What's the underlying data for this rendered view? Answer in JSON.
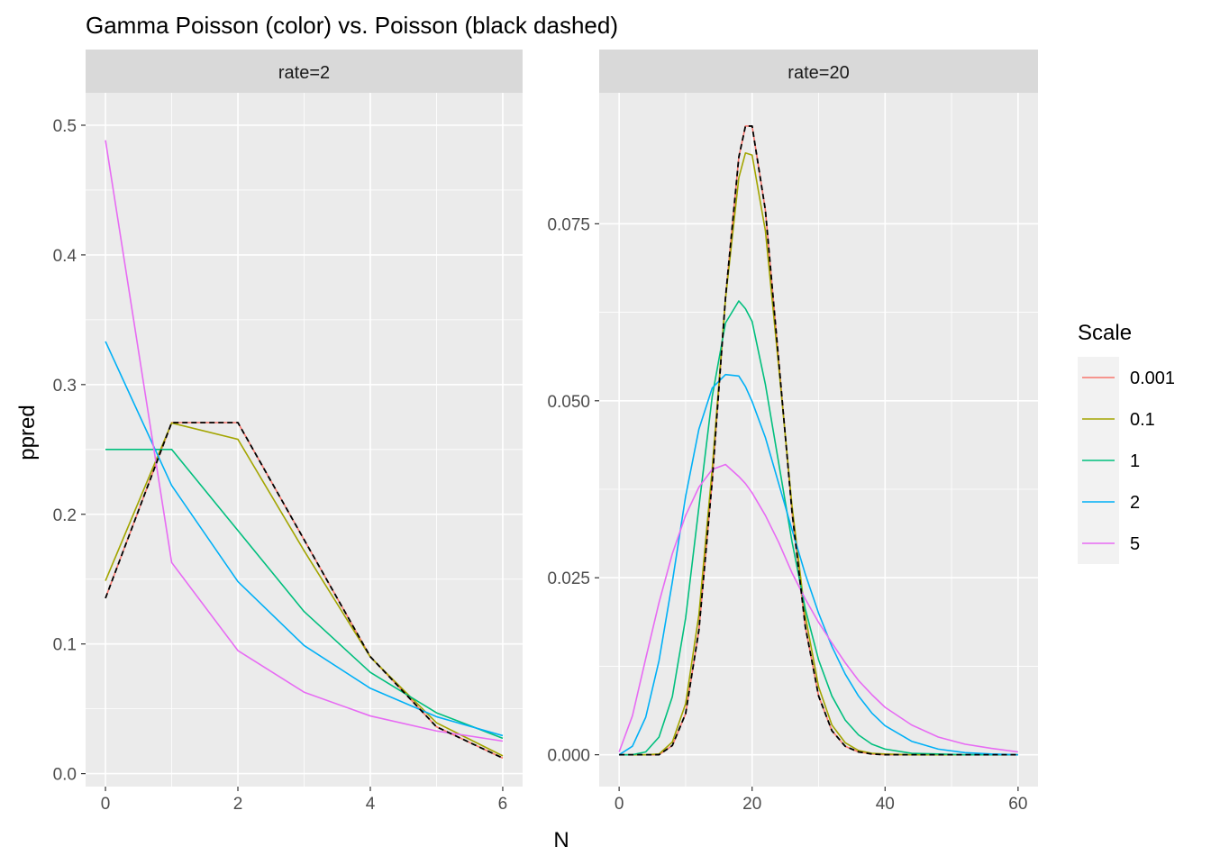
{
  "chart_data": {
    "type": "line",
    "title": "Gamma Poisson (color) vs. Poisson (black dashed)",
    "xlabel": "N",
    "ylabel": "ppred",
    "legend": {
      "title": "Scale",
      "position": "right",
      "entries": [
        {
          "label": "0.001",
          "color": "#F8766D"
        },
        {
          "label": "0.1",
          "color": "#A3A500"
        },
        {
          "label": "1",
          "color": "#00BF7D"
        },
        {
          "label": "2",
          "color": "#00B0F6"
        },
        {
          "label": "5",
          "color": "#E76BF3"
        }
      ]
    },
    "grid": true,
    "panels": [
      {
        "strip": "rate=2",
        "xlim": [
          -0.3,
          6.3
        ],
        "ylim": [
          -0.01,
          0.525
        ],
        "x_ticks": [
          0,
          2,
          4,
          6
        ],
        "x_tick_labels": [
          "0",
          "2",
          "4",
          "6"
        ],
        "y_ticks": [
          0.0,
          0.1,
          0.2,
          0.3,
          0.4,
          0.5
        ],
        "y_tick_labels": [
          "0.0",
          "0.1",
          "0.2",
          "0.3",
          "0.4",
          "0.5"
        ],
        "x": [
          0,
          1,
          2,
          3,
          4,
          5,
          6
        ],
        "series": [
          {
            "name": "0.001",
            "values": [
              0.1354,
              0.2707,
              0.2707,
              0.1804,
              0.0902,
              0.0361,
              0.012
            ]
          },
          {
            "name": "0.1",
            "values": [
              0.1487,
              0.2704,
              0.2578,
              0.1719,
              0.0899,
              0.0392,
              0.0137
            ]
          },
          {
            "name": "1",
            "values": [
              0.25,
              0.25,
              0.1875,
              0.125,
              0.0781,
              0.0469,
              0.0273
            ]
          },
          {
            "name": "2",
            "values": [
              0.3333,
              0.2222,
              0.1481,
              0.0988,
              0.0658,
              0.0439,
              0.0293
            ]
          },
          {
            "name": "5",
            "values": [
              0.4884,
              0.1628,
              0.0949,
              0.0628,
              0.0445,
              0.0329,
              0.0251
            ]
          }
        ],
        "poisson": [
          0.1353,
          0.2707,
          0.2707,
          0.1804,
          0.0902,
          0.0361,
          0.012
        ]
      },
      {
        "strip": "rate=20",
        "xlim": [
          -3,
          63
        ],
        "ylim": [
          -0.0045,
          0.0935
        ],
        "x_ticks": [
          0,
          20,
          40,
          60
        ],
        "x_tick_labels": [
          "0",
          "20",
          "40",
          "60"
        ],
        "y_ticks": [
          0.0,
          0.025,
          0.05,
          0.075
        ],
        "y_tick_labels": [
          "0.000",
          "0.025",
          "0.050",
          "0.075"
        ],
        "x": [
          0,
          2,
          4,
          6,
          8,
          10,
          12,
          14,
          16,
          18,
          19,
          20,
          22,
          24,
          26,
          28,
          30,
          32,
          34,
          36,
          38,
          40,
          44,
          48,
          52,
          56,
          60
        ],
        "series": [
          {
            "name": "0.001",
            "values": [
              0.0,
              0.0,
              0.0,
              0.0,
              0.0013,
              0.0058,
              0.0176,
              0.0387,
              0.0646,
              0.0844,
              0.0888,
              0.0888,
              0.0769,
              0.0557,
              0.0343,
              0.0181,
              0.0083,
              0.0034,
              0.0012,
              0.0004,
              0.0001,
              0.0,
              0.0,
              0.0,
              0.0,
              0.0,
              0.0
            ]
          },
          {
            "name": "0.1",
            "values": [
              0.0,
              0.0,
              0.0,
              0.0001,
              0.0018,
              0.0072,
              0.0198,
              0.0404,
              0.0644,
              0.0815,
              0.085,
              0.0847,
              0.074,
              0.0548,
              0.0352,
              0.0196,
              0.0096,
              0.0042,
              0.0017,
              0.0006,
              0.0002,
              0.0001,
              0.0,
              0.0,
              0.0,
              0.0,
              0.0
            ]
          },
          {
            "name": "1",
            "values": [
              0.0,
              0.0,
              0.0004,
              0.0025,
              0.0082,
              0.0193,
              0.035,
              0.0506,
              0.061,
              0.0641,
              0.063,
              0.0612,
              0.0523,
              0.0412,
              0.0301,
              0.0206,
              0.0134,
              0.0083,
              0.0049,
              0.0028,
              0.0015,
              0.0008,
              0.0002,
              0.0001,
              0.0,
              0.0,
              0.0
            ]
          },
          {
            "name": "2",
            "values": [
              0.0,
              0.0012,
              0.0053,
              0.0133,
              0.0244,
              0.0365,
              0.046,
              0.0518,
              0.0537,
              0.0535,
              0.052,
              0.0499,
              0.0448,
              0.0383,
              0.0318,
              0.0255,
              0.02,
              0.0153,
              0.0114,
              0.0083,
              0.0059,
              0.0041,
              0.0019,
              0.0008,
              0.0003,
              0.0001,
              0.0
            ]
          },
          {
            "name": "5",
            "values": [
              0.0004,
              0.0055,
              0.0136,
              0.0215,
              0.0284,
              0.0338,
              0.0378,
              0.0403,
              0.041,
              0.0393,
              0.0383,
              0.037,
              0.0338,
              0.03,
              0.0257,
              0.022,
              0.0187,
              0.0158,
              0.013,
              0.0105,
              0.0085,
              0.0067,
              0.0042,
              0.0025,
              0.0015,
              0.0009,
              0.0004
            ]
          }
        ],
        "poisson": [
          0.0,
          0.0,
          0.0,
          0.0,
          0.0013,
          0.0058,
          0.0176,
          0.0387,
          0.0646,
          0.0844,
          0.0888,
          0.0888,
          0.0769,
          0.0557,
          0.0343,
          0.0181,
          0.0083,
          0.0034,
          0.0012,
          0.0004,
          0.0001,
          0.0,
          0.0,
          0.0,
          0.0,
          0.0,
          0.0
        ]
      }
    ]
  }
}
